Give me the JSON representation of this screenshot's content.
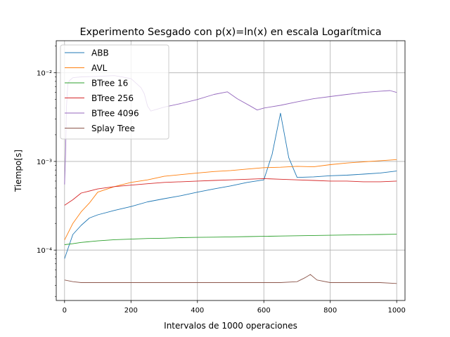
{
  "chart_data": {
    "type": "line",
    "title": "Experimento Sesgado con p(x)=ln(x) en escala Logarítmica",
    "xlabel": "Intervalos de 1000 operaciones",
    "ylabel": "Tiempo[s]",
    "xlim": [
      -25,
      1025
    ],
    "ylim": [
      2.7e-05,
      0.023
    ],
    "yscale": "log",
    "grid": true,
    "legend_position": "top-left",
    "x_ticks": [
      0,
      200,
      400,
      600,
      800,
      1000
    ],
    "x_tick_labels": [
      "0",
      "200",
      "400",
      "600",
      "800",
      "1000"
    ],
    "y_ticks": [
      0.0001,
      0.001,
      0.01
    ],
    "y_tick_labels": [
      "10⁻⁴",
      "10⁻³",
      "10⁻²"
    ],
    "series": [
      {
        "name": "ABB",
        "color": "#1f77b4",
        "x": [
          0,
          25,
          50,
          75,
          100,
          150,
          200,
          250,
          300,
          350,
          400,
          450,
          500,
          550,
          600,
          625,
          650,
          675,
          700,
          750,
          800,
          850,
          900,
          950,
          1000
        ],
        "values": [
          8e-05,
          0.00015,
          0.00019,
          0.00023,
          0.00025,
          0.00028,
          0.00031,
          0.00035,
          0.00038,
          0.00041,
          0.00045,
          0.00049,
          0.00053,
          0.00058,
          0.00062,
          0.0012,
          0.0035,
          0.0011,
          0.00066,
          0.00067,
          0.00069,
          0.0007,
          0.00072,
          0.00074,
          0.00078
        ]
      },
      {
        "name": "AVL",
        "color": "#ff7f0e",
        "x": [
          0,
          25,
          50,
          75,
          100,
          150,
          200,
          250,
          300,
          350,
          400,
          450,
          500,
          550,
          600,
          650,
          700,
          750,
          800,
          850,
          900,
          950,
          1000
        ],
        "values": [
          0.00013,
          0.0002,
          0.00027,
          0.00034,
          0.00045,
          0.00052,
          0.00058,
          0.00062,
          0.00068,
          0.00071,
          0.00074,
          0.00077,
          0.00079,
          0.00082,
          0.00085,
          0.00086,
          0.00088,
          0.00087,
          0.00092,
          0.00096,
          0.00099,
          0.00102,
          0.00105
        ]
      },
      {
        "name": "BTree 16",
        "color": "#2ca02c",
        "x": [
          0,
          25,
          50,
          100,
          150,
          200,
          250,
          300,
          350,
          400,
          450,
          500,
          550,
          600,
          650,
          700,
          750,
          800,
          850,
          900,
          950,
          1000
        ],
        "values": [
          0.000115,
          0.000118,
          0.000122,
          0.000127,
          0.000131,
          0.000133,
          0.000135,
          0.000136,
          0.000138,
          0.000139,
          0.00014,
          0.000141,
          0.000142,
          0.000143,
          0.000144,
          0.000145,
          0.000146,
          0.000147,
          0.000148,
          0.000149,
          0.00015,
          0.000151
        ]
      },
      {
        "name": "BTree 256",
        "color": "#d62728",
        "x": [
          0,
          25,
          50,
          100,
          150,
          200,
          250,
          300,
          350,
          400,
          450,
          500,
          550,
          600,
          650,
          700,
          750,
          800,
          850,
          900,
          950,
          1000
        ],
        "values": [
          0.00032,
          0.00037,
          0.00044,
          0.00049,
          0.00052,
          0.00054,
          0.00056,
          0.00058,
          0.00059,
          0.0006,
          0.00061,
          0.00062,
          0.00063,
          0.00064,
          0.00063,
          0.00062,
          0.00061,
          0.0006,
          0.0006,
          0.00059,
          0.00059,
          0.0006
        ]
      },
      {
        "name": "BTree 4096",
        "color": "#9467bd",
        "x": [
          0,
          3,
          6,
          10,
          15,
          20,
          25,
          50,
          100,
          150,
          200,
          230,
          240,
          250,
          260,
          270,
          300,
          350,
          400,
          450,
          490,
          520,
          560,
          580,
          600,
          650,
          700,
          750,
          800,
          850,
          900,
          950,
          980,
          1000
        ],
        "values": [
          0.00055,
          0.0012,
          0.0042,
          0.0075,
          0.0082,
          0.0085,
          0.0088,
          0.009,
          0.0091,
          0.0093,
          0.0086,
          0.0068,
          0.0058,
          0.0042,
          0.0037,
          0.0038,
          0.0041,
          0.0045,
          0.005,
          0.0057,
          0.0061,
          0.0051,
          0.0042,
          0.0038,
          0.004,
          0.0043,
          0.0047,
          0.0051,
          0.0054,
          0.0057,
          0.006,
          0.0062,
          0.0063,
          0.006
        ]
      },
      {
        "name": "Splay Tree",
        "color": "#8c564b",
        "x": [
          0,
          25,
          50,
          100,
          150,
          200,
          250,
          300,
          350,
          400,
          450,
          500,
          550,
          600,
          650,
          700,
          725,
          740,
          760,
          800,
          850,
          900,
          950,
          1000
        ],
        "values": [
          4.6e-05,
          4.4e-05,
          4.3e-05,
          4.3e-05,
          4.3e-05,
          4.3e-05,
          4.3e-05,
          4.3e-05,
          4.3e-05,
          4.3e-05,
          4.3e-05,
          4.3e-05,
          4.3e-05,
          4.3e-05,
          4.3e-05,
          4.4e-05,
          4.9e-05,
          5.3e-05,
          4.6e-05,
          4.3e-05,
          4.3e-05,
          4.3e-05,
          4.3e-05,
          4.2e-05
        ]
      }
    ]
  }
}
